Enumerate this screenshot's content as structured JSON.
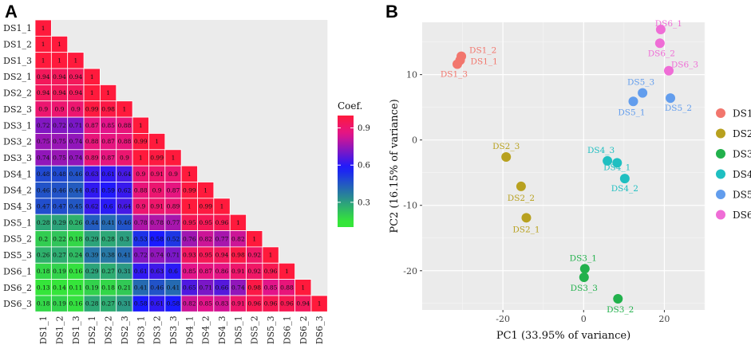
{
  "panels": {
    "a": "A",
    "b": "B"
  },
  "chart_data": [
    {
      "type": "heatmap",
      "title": "",
      "labels": [
        "DS1_1",
        "DS1_2",
        "DS1_3",
        "DS2_1",
        "DS2_2",
        "DS2_3",
        "DS3_1",
        "DS3_2",
        "DS3_3",
        "DS4_1",
        "DS4_2",
        "DS4_3",
        "DS5_1",
        "DS5_2",
        "DS5_3",
        "DS6_1",
        "DS6_2",
        "DS6_3"
      ],
      "lower_triangle_values": [
        [
          1
        ],
        [
          1,
          1
        ],
        [
          1,
          1,
          1
        ],
        [
          0.94,
          0.94,
          0.94,
          1
        ],
        [
          0.94,
          0.94,
          0.94,
          1,
          1
        ],
        [
          0.9,
          0.9,
          0.9,
          0.99,
          0.98,
          1
        ],
        [
          0.72,
          0.72,
          0.71,
          0.87,
          0.85,
          0.88,
          1
        ],
        [
          0.75,
          0.75,
          0.74,
          0.88,
          0.87,
          0.88,
          0.99,
          1
        ],
        [
          0.74,
          0.75,
          0.74,
          0.89,
          0.87,
          0.9,
          1,
          0.99,
          1
        ],
        [
          0.48,
          0.48,
          0.46,
          0.63,
          0.61,
          0.64,
          0.9,
          0.91,
          0.9,
          1
        ],
        [
          0.46,
          0.46,
          0.44,
          0.61,
          0.59,
          0.62,
          0.88,
          0.9,
          0.87,
          0.99,
          1
        ],
        [
          0.47,
          0.47,
          0.45,
          0.62,
          0.6,
          0.64,
          0.9,
          0.91,
          0.89,
          1,
          0.99,
          1
        ],
        [
          0.28,
          0.29,
          0.26,
          0.44,
          0.41,
          0.46,
          0.78,
          0.78,
          0.77,
          0.95,
          0.95,
          0.96,
          1
        ],
        [
          0.2,
          0.22,
          0.18,
          0.29,
          0.28,
          0.3,
          0.53,
          0.58,
          0.52,
          0.76,
          0.82,
          0.77,
          0.82,
          1
        ],
        [
          0.26,
          0.27,
          0.24,
          0.39,
          0.38,
          0.41,
          0.72,
          0.74,
          0.71,
          0.93,
          0.95,
          0.94,
          0.98,
          0.92,
          1
        ],
        [
          0.18,
          0.19,
          0.16,
          0.29,
          0.27,
          0.31,
          0.61,
          0.63,
          0.6,
          0.85,
          0.87,
          0.86,
          0.91,
          0.92,
          0.96,
          1
        ],
        [
          0.13,
          0.14,
          0.11,
          0.19,
          0.18,
          0.21,
          0.41,
          0.46,
          0.41,
          0.65,
          0.71,
          0.66,
          0.74,
          0.98,
          0.85,
          0.88,
          1
        ],
        [
          0.18,
          0.19,
          0.16,
          0.28,
          0.27,
          0.31,
          0.58,
          0.61,
          0.58,
          0.82,
          0.85,
          0.83,
          0.91,
          0.96,
          0.96,
          0.96,
          0.94,
          1
        ]
      ],
      "colorbar": {
        "title": "Coef.",
        "ticks": [
          "0.9",
          "0.6",
          "0.3"
        ],
        "tick_values": [
          0.9,
          0.6,
          0.3
        ],
        "range": [
          0.1,
          1.0
        ],
        "colors": [
          "#35e53a",
          "#1a1aff",
          "#e2148a",
          "#ff1a3c"
        ]
      }
    },
    {
      "type": "scatter",
      "xlabel": "PC1 (33.95% of variance)",
      "ylabel": "PC2 (16.15% of variance)",
      "xlim": [
        -40,
        30
      ],
      "ylim": [
        -26,
        18
      ],
      "xticks": [
        -20,
        0,
        20
      ],
      "xtick_labels": [
        "-20",
        "0",
        "20"
      ],
      "yticks": [
        -20,
        -10,
        0,
        10
      ],
      "ytick_labels": [
        "-20",
        "-10",
        "0",
        "10"
      ],
      "grid": true,
      "legend": "right",
      "series": [
        {
          "name": "DS1",
          "color": "#f2766d",
          "points": [
            {
              "label": "DS1_2",
              "x": -30.3,
              "y": 12.8
            },
            {
              "label": "DS1_1",
              "x": -30.6,
              "y": 12.2
            },
            {
              "label": "DS1_3",
              "x": -31.3,
              "y": 11.6
            }
          ]
        },
        {
          "name": "DS2",
          "color": "#b8a11f",
          "points": [
            {
              "label": "DS2_3",
              "x": -19.2,
              "y": -2.6
            },
            {
              "label": "DS2_2",
              "x": -15.5,
              "y": -7.1
            },
            {
              "label": "DS2_1",
              "x": -14.2,
              "y": -11.9
            }
          ]
        },
        {
          "name": "DS3",
          "color": "#22b14c",
          "points": [
            {
              "label": "DS3_1",
              "x": 0.3,
              "y": -19.7
            },
            {
              "label": "DS3_3",
              "x": 0.1,
              "y": -21.0
            },
            {
              "label": "DS3_2",
              "x": 8.5,
              "y": -24.3
            }
          ]
        },
        {
          "name": "DS4",
          "color": "#1fbfc1",
          "points": [
            {
              "label": "DS4_3",
              "x": 5.9,
              "y": -3.2
            },
            {
              "label": "DS4_1",
              "x": 8.3,
              "y": -3.5
            },
            {
              "label": "DS4_2",
              "x": 10.2,
              "y": -5.9
            }
          ]
        },
        {
          "name": "DS5",
          "color": "#629ded",
          "points": [
            {
              "label": "DS5_3",
              "x": 14.6,
              "y": 7.2
            },
            {
              "label": "DS5_1",
              "x": 12.3,
              "y": 5.9
            },
            {
              "label": "DS5_2",
              "x": 21.5,
              "y": 6.4
            }
          ]
        },
        {
          "name": "DS6",
          "color": "#ef6dd6",
          "points": [
            {
              "label": "DS6_1",
              "x": 19.1,
              "y": 16.9
            },
            {
              "label": "DS6_2",
              "x": 18.9,
              "y": 14.8
            },
            {
              "label": "DS6_3",
              "x": 21.1,
              "y": 10.6
            }
          ]
        }
      ]
    }
  ]
}
